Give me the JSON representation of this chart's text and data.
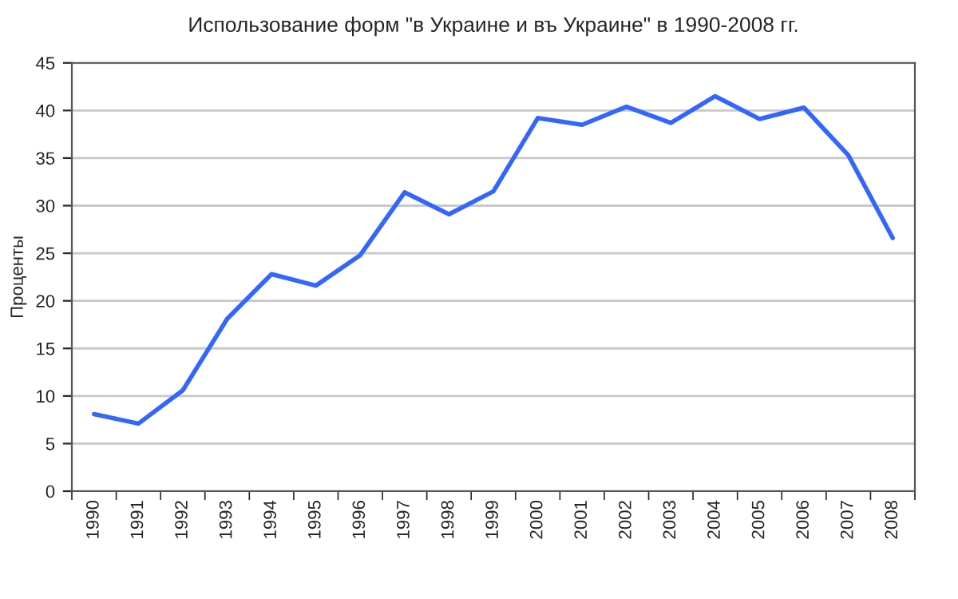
{
  "chart_data": {
    "type": "line",
    "title": "Использование форм \"в Украине и въ Украине\" в 1990-2008 гг.",
    "ylabel": "Проценты",
    "categories": [
      "1990",
      "1991",
      "1992",
      "1993",
      "1994",
      "1995",
      "1996",
      "1997",
      "1998",
      "1999",
      "2000",
      "2001",
      "2002",
      "2003",
      "2004",
      "2005",
      "2006",
      "2007",
      "2008"
    ],
    "series": [
      {
        "color": "#3366ff",
        "values": [
          8.1,
          7.1,
          10.6,
          18.1,
          22.8,
          21.6,
          24.8,
          31.4,
          29.1,
          31.5,
          39.2,
          38.5,
          40.4,
          38.7,
          41.5,
          39.1,
          40.3,
          35.3,
          26.6
        ]
      }
    ],
    "ylim": [
      0,
      45
    ],
    "yticks": [
      0,
      5,
      10,
      15,
      20,
      25,
      30,
      35,
      40,
      45
    ],
    "grid": "y",
    "legend": false,
    "marker": "none",
    "line_style": "solid"
  }
}
